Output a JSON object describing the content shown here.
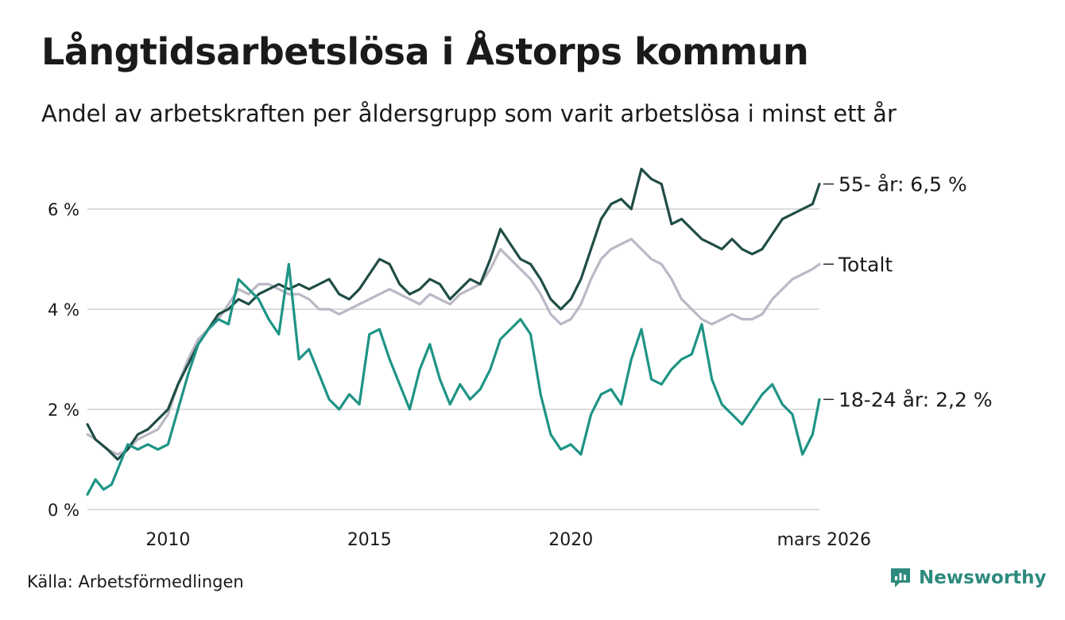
{
  "title": "Långtidsarbetslösa i Åstorps kommun",
  "subtitle": "Andel av arbetskraften per åldersgrupp som varit arbetslösa i minst ett år",
  "source": "Källa: Arbetsförmedlingen",
  "brand": "Newsworthy",
  "colors": {
    "s55": "#1f4d45",
    "total": "#bbb8c6",
    "s1824": "#1e9485",
    "grid": "#dcdcdc",
    "brand": "#2e8a7e"
  },
  "chart_data": {
    "type": "line",
    "title": "Långtidsarbetslösa i Åstorps kommun",
    "xlabel": "",
    "ylabel": "",
    "xlim": [
      2008.0,
      2026.17
    ],
    "ylim": [
      0,
      7
    ],
    "y_ticks": [
      0,
      2,
      4,
      6
    ],
    "y_tick_labels": [
      "0 %",
      "2 %",
      "4 %",
      "6 %"
    ],
    "x_ticks": [
      2010,
      2015,
      2020,
      2026.17
    ],
    "x_tick_labels": [
      "2010",
      "2015",
      "2020",
      "mars 2026"
    ],
    "grid": true,
    "series": [
      {
        "name": "55- år",
        "label": "55- år: 6,5 %",
        "color_key": "s55",
        "points": [
          [
            2008.0,
            1.7
          ],
          [
            2008.2,
            1.4
          ],
          [
            2008.5,
            1.2
          ],
          [
            2008.75,
            1.0
          ],
          [
            2009.0,
            1.2
          ],
          [
            2009.25,
            1.5
          ],
          [
            2009.5,
            1.6
          ],
          [
            2009.75,
            1.8
          ],
          [
            2010.0,
            2.0
          ],
          [
            2010.25,
            2.5
          ],
          [
            2010.5,
            2.9
          ],
          [
            2010.75,
            3.3
          ],
          [
            2011.0,
            3.6
          ],
          [
            2011.25,
            3.9
          ],
          [
            2011.5,
            4.0
          ],
          [
            2011.75,
            4.2
          ],
          [
            2012.0,
            4.1
          ],
          [
            2012.25,
            4.3
          ],
          [
            2012.5,
            4.4
          ],
          [
            2012.75,
            4.5
          ],
          [
            2013.0,
            4.4
          ],
          [
            2013.25,
            4.5
          ],
          [
            2013.5,
            4.4
          ],
          [
            2013.75,
            4.5
          ],
          [
            2014.0,
            4.6
          ],
          [
            2014.25,
            4.3
          ],
          [
            2014.5,
            4.2
          ],
          [
            2014.75,
            4.4
          ],
          [
            2015.0,
            4.7
          ],
          [
            2015.25,
            5.0
          ],
          [
            2015.5,
            4.9
          ],
          [
            2015.75,
            4.5
          ],
          [
            2016.0,
            4.3
          ],
          [
            2016.25,
            4.4
          ],
          [
            2016.5,
            4.6
          ],
          [
            2016.75,
            4.5
          ],
          [
            2017.0,
            4.2
          ],
          [
            2017.25,
            4.4
          ],
          [
            2017.5,
            4.6
          ],
          [
            2017.75,
            4.5
          ],
          [
            2018.0,
            5.0
          ],
          [
            2018.25,
            5.6
          ],
          [
            2018.5,
            5.3
          ],
          [
            2018.75,
            5.0
          ],
          [
            2019.0,
            4.9
          ],
          [
            2019.25,
            4.6
          ],
          [
            2019.5,
            4.2
          ],
          [
            2019.75,
            4.0
          ],
          [
            2020.0,
            4.2
          ],
          [
            2020.25,
            4.6
          ],
          [
            2020.5,
            5.2
          ],
          [
            2020.75,
            5.8
          ],
          [
            2021.0,
            6.1
          ],
          [
            2021.25,
            6.2
          ],
          [
            2021.5,
            6.0
          ],
          [
            2021.75,
            6.8
          ],
          [
            2022.0,
            6.6
          ],
          [
            2022.25,
            6.5
          ],
          [
            2022.5,
            5.7
          ],
          [
            2022.75,
            5.8
          ],
          [
            2023.0,
            5.6
          ],
          [
            2023.25,
            5.4
          ],
          [
            2023.5,
            5.3
          ],
          [
            2023.75,
            5.2
          ],
          [
            2024.0,
            5.4
          ],
          [
            2024.25,
            5.2
          ],
          [
            2024.5,
            5.1
          ],
          [
            2024.75,
            5.2
          ],
          [
            2025.0,
            5.5
          ],
          [
            2025.25,
            5.8
          ],
          [
            2025.5,
            5.9
          ],
          [
            2025.75,
            6.0
          ],
          [
            2026.0,
            6.1
          ],
          [
            2026.17,
            6.5
          ]
        ]
      },
      {
        "name": "Totalt",
        "label": "Totalt",
        "color_key": "total",
        "points": [
          [
            2008.0,
            1.5
          ],
          [
            2008.2,
            1.4
          ],
          [
            2008.5,
            1.2
          ],
          [
            2008.75,
            1.1
          ],
          [
            2009.0,
            1.2
          ],
          [
            2009.25,
            1.4
          ],
          [
            2009.5,
            1.5
          ],
          [
            2009.75,
            1.6
          ],
          [
            2010.0,
            1.9
          ],
          [
            2010.25,
            2.5
          ],
          [
            2010.5,
            3.0
          ],
          [
            2010.75,
            3.4
          ],
          [
            2011.0,
            3.6
          ],
          [
            2011.25,
            3.8
          ],
          [
            2011.5,
            4.1
          ],
          [
            2011.75,
            4.4
          ],
          [
            2012.0,
            4.3
          ],
          [
            2012.25,
            4.5
          ],
          [
            2012.5,
            4.5
          ],
          [
            2012.75,
            4.4
          ],
          [
            2013.0,
            4.3
          ],
          [
            2013.25,
            4.3
          ],
          [
            2013.5,
            4.2
          ],
          [
            2013.75,
            4.0
          ],
          [
            2014.0,
            4.0
          ],
          [
            2014.25,
            3.9
          ],
          [
            2014.5,
            4.0
          ],
          [
            2014.75,
            4.1
          ],
          [
            2015.0,
            4.2
          ],
          [
            2015.25,
            4.3
          ],
          [
            2015.5,
            4.4
          ],
          [
            2015.75,
            4.3
          ],
          [
            2016.0,
            4.2
          ],
          [
            2016.25,
            4.1
          ],
          [
            2016.5,
            4.3
          ],
          [
            2016.75,
            4.2
          ],
          [
            2017.0,
            4.1
          ],
          [
            2017.25,
            4.3
          ],
          [
            2017.5,
            4.4
          ],
          [
            2017.75,
            4.5
          ],
          [
            2018.0,
            4.8
          ],
          [
            2018.25,
            5.2
          ],
          [
            2018.5,
            5.0
          ],
          [
            2018.75,
            4.8
          ],
          [
            2019.0,
            4.6
          ],
          [
            2019.25,
            4.3
          ],
          [
            2019.5,
            3.9
          ],
          [
            2019.75,
            3.7
          ],
          [
            2020.0,
            3.8
          ],
          [
            2020.25,
            4.1
          ],
          [
            2020.5,
            4.6
          ],
          [
            2020.75,
            5.0
          ],
          [
            2021.0,
            5.2
          ],
          [
            2021.25,
            5.3
          ],
          [
            2021.5,
            5.4
          ],
          [
            2021.75,
            5.2
          ],
          [
            2022.0,
            5.0
          ],
          [
            2022.25,
            4.9
          ],
          [
            2022.5,
            4.6
          ],
          [
            2022.75,
            4.2
          ],
          [
            2023.0,
            4.0
          ],
          [
            2023.25,
            3.8
          ],
          [
            2023.5,
            3.7
          ],
          [
            2023.75,
            3.8
          ],
          [
            2024.0,
            3.9
          ],
          [
            2024.25,
            3.8
          ],
          [
            2024.5,
            3.8
          ],
          [
            2024.75,
            3.9
          ],
          [
            2025.0,
            4.2
          ],
          [
            2025.25,
            4.4
          ],
          [
            2025.5,
            4.6
          ],
          [
            2025.75,
            4.7
          ],
          [
            2026.0,
            4.8
          ],
          [
            2026.17,
            4.9
          ]
        ]
      },
      {
        "name": "18-24 år",
        "label": "18-24 år: 2,2 %",
        "color_key": "s1824",
        "points": [
          [
            2008.0,
            0.3
          ],
          [
            2008.2,
            0.6
          ],
          [
            2008.4,
            0.4
          ],
          [
            2008.6,
            0.5
          ],
          [
            2008.8,
            0.9
          ],
          [
            2009.0,
            1.3
          ],
          [
            2009.25,
            1.2
          ],
          [
            2009.5,
            1.3
          ],
          [
            2009.75,
            1.2
          ],
          [
            2010.0,
            1.3
          ],
          [
            2010.25,
            2.0
          ],
          [
            2010.5,
            2.7
          ],
          [
            2010.75,
            3.3
          ],
          [
            2011.0,
            3.6
          ],
          [
            2011.25,
            3.8
          ],
          [
            2011.5,
            3.7
          ],
          [
            2011.75,
            4.6
          ],
          [
            2012.0,
            4.4
          ],
          [
            2012.25,
            4.2
          ],
          [
            2012.5,
            3.8
          ],
          [
            2012.75,
            3.5
          ],
          [
            2013.0,
            4.9
          ],
          [
            2013.25,
            3.0
          ],
          [
            2013.5,
            3.2
          ],
          [
            2013.75,
            2.7
          ],
          [
            2014.0,
            2.2
          ],
          [
            2014.25,
            2.0
          ],
          [
            2014.5,
            2.3
          ],
          [
            2014.75,
            2.1
          ],
          [
            2015.0,
            3.5
          ],
          [
            2015.25,
            3.6
          ],
          [
            2015.5,
            3.0
          ],
          [
            2015.75,
            2.5
          ],
          [
            2016.0,
            2.0
          ],
          [
            2016.25,
            2.8
          ],
          [
            2016.5,
            3.3
          ],
          [
            2016.75,
            2.6
          ],
          [
            2017.0,
            2.1
          ],
          [
            2017.25,
            2.5
          ],
          [
            2017.5,
            2.2
          ],
          [
            2017.75,
            2.4
          ],
          [
            2018.0,
            2.8
          ],
          [
            2018.25,
            3.4
          ],
          [
            2018.5,
            3.6
          ],
          [
            2018.75,
            3.8
          ],
          [
            2019.0,
            3.5
          ],
          [
            2019.25,
            2.3
          ],
          [
            2019.5,
            1.5
          ],
          [
            2019.75,
            1.2
          ],
          [
            2020.0,
            1.3
          ],
          [
            2020.25,
            1.1
          ],
          [
            2020.5,
            1.9
          ],
          [
            2020.75,
            2.3
          ],
          [
            2021.0,
            2.4
          ],
          [
            2021.25,
            2.1
          ],
          [
            2021.5,
            3.0
          ],
          [
            2021.75,
            3.6
          ],
          [
            2022.0,
            2.6
          ],
          [
            2022.25,
            2.5
          ],
          [
            2022.5,
            2.8
          ],
          [
            2022.75,
            3.0
          ],
          [
            2023.0,
            3.1
          ],
          [
            2023.25,
            3.7
          ],
          [
            2023.5,
            2.6
          ],
          [
            2023.75,
            2.1
          ],
          [
            2024.0,
            1.9
          ],
          [
            2024.25,
            1.7
          ],
          [
            2024.5,
            2.0
          ],
          [
            2024.75,
            2.3
          ],
          [
            2025.0,
            2.5
          ],
          [
            2025.25,
            2.1
          ],
          [
            2025.5,
            1.9
          ],
          [
            2025.75,
            1.1
          ],
          [
            2026.0,
            1.5
          ],
          [
            2026.17,
            2.2
          ]
        ]
      }
    ]
  }
}
